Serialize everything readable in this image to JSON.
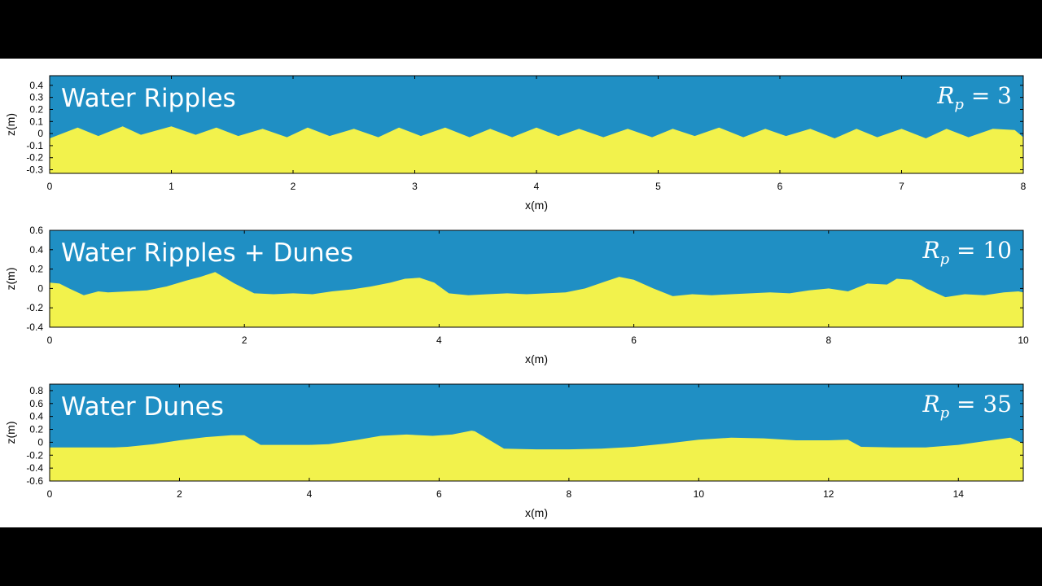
{
  "colors": {
    "water": "#1f8fc4",
    "sand": "#f2f24c",
    "frame": "#000000",
    "background": "#ffffff",
    "letterbox": "#000000"
  },
  "chart_data": [
    {
      "type": "area",
      "title": "Water Ripples",
      "annotation": {
        "symbol": "R",
        "subscript": "p",
        "value": "= 3"
      },
      "xlabel": "x(m)",
      "ylabel": "z(m)",
      "xlim": [
        0,
        8
      ],
      "ylim": [
        -0.33,
        0.48
      ],
      "xticks": [
        0,
        1,
        2,
        3,
        4,
        5,
        6,
        7,
        8
      ],
      "yticks": [
        -0.3,
        -0.2,
        -0.1,
        0,
        0.1,
        0.2,
        0.3,
        0.4
      ],
      "series": [
        {
          "x": [
            0,
            0.23,
            0.4,
            0.6,
            0.75,
            1.0,
            1.2,
            1.37,
            1.55,
            1.75,
            1.95,
            2.12,
            2.3,
            2.5,
            2.7,
            2.87,
            3.05,
            3.25,
            3.45,
            3.62,
            3.8,
            4.0,
            4.18,
            4.35,
            4.55,
            4.75,
            4.95,
            5.12,
            5.3,
            5.5,
            5.7,
            5.88,
            6.05,
            6.25,
            6.45,
            6.63,
            6.8,
            7.0,
            7.2,
            7.37,
            7.55,
            7.75,
            7.93,
            8.0
          ],
          "y": [
            -0.04,
            0.05,
            -0.02,
            0.06,
            -0.01,
            0.06,
            -0.01,
            0.05,
            -0.02,
            0.04,
            -0.03,
            0.05,
            -0.02,
            0.04,
            -0.03,
            0.05,
            -0.02,
            0.05,
            -0.03,
            0.04,
            -0.03,
            0.05,
            -0.02,
            0.04,
            -0.03,
            0.04,
            -0.03,
            0.04,
            -0.02,
            0.05,
            -0.03,
            0.04,
            -0.02,
            0.04,
            -0.04,
            0.04,
            -0.03,
            0.04,
            -0.04,
            0.04,
            -0.03,
            0.04,
            0.03,
            -0.03
          ]
        }
      ]
    },
    {
      "type": "area",
      "title": "Water Ripples + Dunes",
      "annotation": {
        "symbol": "R",
        "subscript": "p",
        "value": "= 10"
      },
      "xlabel": "x(m)",
      "ylabel": "z(m)",
      "xlim": [
        0,
        10
      ],
      "ylim": [
        -0.4,
        0.6
      ],
      "xticks": [
        0,
        2,
        4,
        6,
        8,
        10
      ],
      "yticks": [
        -0.4,
        -0.2,
        0,
        0.2,
        0.4,
        0.6
      ],
      "series": [
        {
          "x": [
            0,
            0.1,
            0.2,
            0.35,
            0.5,
            0.6,
            0.8,
            1.0,
            1.2,
            1.4,
            1.55,
            1.7,
            1.9,
            2.1,
            2.3,
            2.5,
            2.7,
            2.9,
            3.1,
            3.3,
            3.5,
            3.65,
            3.8,
            3.95,
            4.1,
            4.3,
            4.5,
            4.7,
            4.9,
            5.1,
            5.3,
            5.5,
            5.7,
            5.85,
            6.0,
            6.2,
            6.4,
            6.6,
            6.8,
            7.0,
            7.2,
            7.4,
            7.6,
            7.8,
            8.0,
            8.2,
            8.4,
            8.6,
            8.7,
            8.85,
            9.0,
            9.2,
            9.4,
            9.6,
            9.8,
            9.95,
            10.0
          ],
          "y": [
            0.06,
            0.05,
            0.0,
            -0.07,
            -0.03,
            -0.04,
            -0.03,
            -0.02,
            0.02,
            0.08,
            0.12,
            0.17,
            0.05,
            -0.05,
            -0.06,
            -0.05,
            -0.06,
            -0.03,
            -0.01,
            0.02,
            0.06,
            0.1,
            0.11,
            0.06,
            -0.05,
            -0.07,
            -0.06,
            -0.05,
            -0.06,
            -0.05,
            -0.04,
            0.0,
            0.07,
            0.12,
            0.09,
            0.0,
            -0.08,
            -0.06,
            -0.07,
            -0.06,
            -0.05,
            -0.04,
            -0.05,
            -0.02,
            0.0,
            -0.03,
            0.05,
            0.04,
            0.1,
            0.09,
            0.0,
            -0.09,
            -0.06,
            -0.07,
            -0.04,
            -0.03,
            -0.04
          ]
        }
      ]
    },
    {
      "type": "area",
      "title": "Water Dunes",
      "annotation": {
        "symbol": "R",
        "subscript": "p",
        "value": "= 35"
      },
      "xlabel": "x(m)",
      "ylabel": "z(m)",
      "xlim": [
        0,
        15
      ],
      "ylim": [
        -0.6,
        0.9
      ],
      "xticks": [
        0,
        2,
        4,
        6,
        8,
        10,
        12,
        14
      ],
      "yticks": [
        -0.6,
        -0.4,
        -0.2,
        0,
        0.2,
        0.4,
        0.6,
        0.8
      ],
      "series": [
        {
          "x": [
            0,
            0.5,
            1.0,
            1.2,
            1.6,
            2.0,
            2.4,
            2.8,
            3.0,
            3.25,
            3.5,
            4.0,
            4.3,
            4.7,
            5.1,
            5.5,
            5.9,
            6.2,
            6.5,
            6.55,
            7.0,
            7.5,
            8.0,
            8.5,
            9.0,
            9.5,
            10.0,
            10.5,
            11.0,
            11.5,
            12.0,
            12.3,
            12.5,
            13.0,
            13.5,
            14.0,
            14.5,
            14.8,
            15.0
          ],
          "y": [
            -0.08,
            -0.08,
            -0.08,
            -0.07,
            -0.03,
            0.03,
            0.08,
            0.11,
            0.11,
            -0.04,
            -0.04,
            -0.04,
            -0.03,
            0.03,
            0.1,
            0.12,
            0.1,
            0.12,
            0.18,
            0.17,
            -0.1,
            -0.11,
            -0.11,
            -0.1,
            -0.07,
            -0.02,
            0.04,
            0.07,
            0.06,
            0.03,
            0.03,
            0.04,
            -0.07,
            -0.08,
            -0.08,
            -0.04,
            0.03,
            0.07,
            -0.02
          ]
        }
      ]
    }
  ]
}
